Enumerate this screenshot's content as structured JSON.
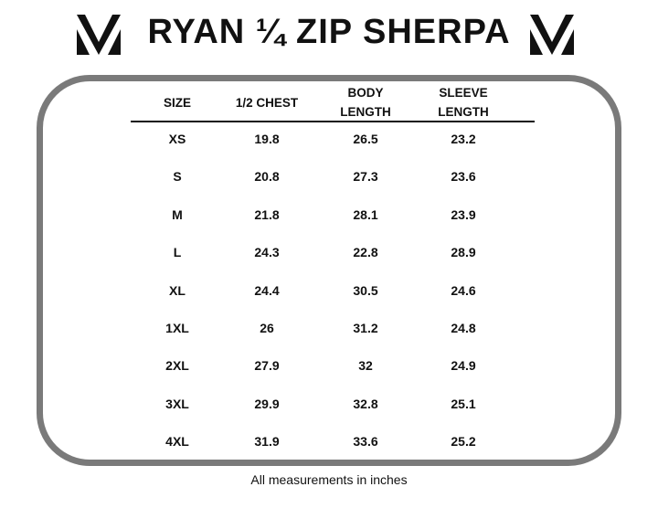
{
  "title": "RYAN ¼ ZIP SHERPA",
  "table": {
    "header": [
      "SIZE",
      "1/2 CHEST",
      "BODY LENGTH",
      "SLEEVE LENGTH"
    ],
    "rows": [
      [
        "XS",
        19.8,
        26.5,
        23.2
      ],
      [
        "S",
        20.8,
        27.3,
        23.6
      ],
      [
        "M",
        21.8,
        28.1,
        23.9
      ],
      [
        "L",
        24.3,
        22.8,
        28.9
      ],
      [
        "XL",
        24.4,
        30.5,
        24.6
      ],
      [
        "1XL",
        26,
        31.2,
        24.8
      ],
      [
        "2XL",
        27.9,
        32,
        24.9
      ],
      [
        "3XL",
        29.9,
        32.8,
        25.1
      ],
      [
        "4XL",
        31.9,
        33.6,
        25.2
      ]
    ]
  },
  "footer": "All measurements in inches"
}
